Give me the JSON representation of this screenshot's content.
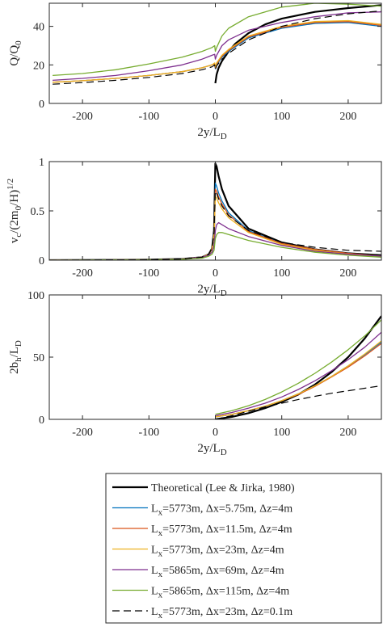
{
  "colors": {
    "theoretical": "#000000",
    "dx575": "#0072BD",
    "dx115": "#D95319",
    "dx23": "#EDB120",
    "dx69": "#7E2F8E",
    "dx115b": "#77AC30",
    "dz01": "#000000"
  },
  "legend": {
    "placement": "bottom",
    "entries": [
      {
        "key": "theoretical",
        "label": "Theoretical (Lee & Jirka, 1980)",
        "style": "thick"
      },
      {
        "key": "dx575",
        "label_main": "L",
        "label_sub": "x",
        "label_rest": "=5773m, Δx=5.75m, Δz=4m",
        "style": "solid"
      },
      {
        "key": "dx115",
        "label_main": "L",
        "label_sub": "x",
        "label_rest": "=5773m, Δx=11.5m, Δz=4m",
        "style": "solid"
      },
      {
        "key": "dx23",
        "label_main": "L",
        "label_sub": "x",
        "label_rest": "=5773m, Δx=23m, Δz=4m",
        "style": "solid"
      },
      {
        "key": "dx69",
        "label_main": "L",
        "label_sub": "x",
        "label_rest": "=5865m, Δx=69m, Δz=4m",
        "style": "solid"
      },
      {
        "key": "dx115b",
        "label_main": "L",
        "label_sub": "x",
        "label_rest": "=5865m, Δx=115m, Δz=4m",
        "style": "solid"
      },
      {
        "key": "dz01",
        "label_main": "L",
        "label_sub": "x",
        "label_rest": "=5773m, Δx=23m, Δz=0.1m",
        "style": "dashed"
      }
    ]
  },
  "chart_data": [
    {
      "type": "line",
      "xlabel_main": "2y/L",
      "xlabel_sub": "D",
      "ylabel_main": "Q/Q",
      "ylabel_sub": "0",
      "xlim": [
        -250,
        250
      ],
      "ylim": [
        0,
        52
      ],
      "xticks": [
        -200,
        -100,
        0,
        100,
        200
      ],
      "yticks": [
        0,
        20,
        40
      ],
      "xtick_labels": [
        "-200",
        "-100",
        "0",
        "100",
        "200"
      ],
      "ytick_labels": [
        "0",
        "20",
        "40"
      ],
      "grid": false,
      "series": [
        {
          "key": "theoretical",
          "x": [
            0,
            2,
            5,
            10,
            20,
            30,
            50,
            75,
            100,
            150,
            200,
            250
          ],
          "y": [
            10.5,
            15,
            18.5,
            22,
            27,
            31,
            36.5,
            41,
            44,
            47.5,
            49.5,
            51
          ]
        },
        {
          "key": "dx575",
          "x": [
            -245,
            -200,
            -150,
            -100,
            -50,
            -20,
            -5,
            -1,
            0,
            2,
            10,
            20,
            50,
            100,
            150,
            200,
            250
          ],
          "y": [
            11,
            11.8,
            13,
            14.5,
            16.5,
            18.5,
            20,
            20.5,
            18,
            20,
            24,
            27,
            34,
            39,
            41.5,
            42,
            40
          ]
        },
        {
          "key": "dx115",
          "x": [
            -245,
            -200,
            -150,
            -100,
            -50,
            -20,
            -5,
            -1,
            0,
            2,
            10,
            20,
            50,
            100,
            150,
            200,
            250
          ],
          "y": [
            11,
            11.8,
            13,
            14.5,
            16.5,
            18.5,
            20,
            20.5,
            18.5,
            20.5,
            24.5,
            27.5,
            34.5,
            39.5,
            42,
            42.5,
            40.5
          ]
        },
        {
          "key": "dx23",
          "x": [
            -245,
            -200,
            -150,
            -100,
            -50,
            -20,
            -5,
            -1,
            0,
            2,
            10,
            20,
            50,
            100,
            150,
            200,
            250
          ],
          "y": [
            11,
            11.8,
            13,
            14.5,
            16.5,
            18.5,
            20,
            21,
            19,
            21,
            25,
            28,
            35,
            40,
            42.5,
            43,
            41
          ]
        },
        {
          "key": "dx69",
          "x": [
            -245,
            -200,
            -150,
            -100,
            -50,
            -20,
            -5,
            -1,
            0,
            2,
            10,
            20,
            50,
            100,
            150,
            200,
            250
          ],
          "y": [
            12,
            13,
            14.5,
            17,
            20,
            23,
            25,
            25.5,
            23,
            25,
            30,
            33,
            38,
            42,
            45,
            47,
            47.5
          ]
        },
        {
          "key": "dx115b",
          "x": [
            -245,
            -200,
            -150,
            -100,
            -50,
            -20,
            -5,
            -1,
            0,
            2,
            10,
            20,
            50,
            100,
            150,
            200,
            250
          ],
          "y": [
            14.5,
            15.5,
            17.5,
            20.5,
            24,
            27,
            29,
            30,
            27,
            29,
            35,
            39,
            45,
            50,
            52,
            51.5,
            50.5
          ]
        },
        {
          "key": "dz01",
          "x": [
            -245,
            -200,
            -150,
            -100,
            -50,
            -20,
            -5,
            -1,
            0,
            2,
            10,
            20,
            50,
            100,
            150,
            200,
            250
          ],
          "y": [
            10,
            10.8,
            12,
            13.5,
            15.5,
            17.5,
            19,
            20,
            17.5,
            19.5,
            23,
            26,
            33,
            40,
            44,
            46.5,
            48
          ]
        }
      ]
    },
    {
      "type": "line",
      "xlabel_main": "2y/L",
      "xlabel_sub": "D",
      "ylabel_parts": [
        "v",
        "c",
        "/(2m",
        "0",
        "/H)",
        "1/2"
      ],
      "xlim": [
        -250,
        250
      ],
      "ylim": [
        0,
        1
      ],
      "xticks": [
        -200,
        -100,
        0,
        100,
        200
      ],
      "yticks": [
        0,
        0.5,
        1
      ],
      "xtick_labels": [
        "-200",
        "-100",
        "0",
        "100",
        "200"
      ],
      "ytick_labels": [
        "0",
        "0.5",
        "1"
      ],
      "grid": false,
      "series": [
        {
          "key": "theoretical",
          "x": [
            -250,
            -100,
            -50,
            -20,
            -10,
            -5,
            -2,
            0,
            2,
            5,
            10,
            20,
            50,
            100,
            150,
            200,
            250
          ],
          "y": [
            0,
            0.005,
            0.012,
            0.03,
            0.06,
            0.12,
            0.3,
            0.98,
            0.95,
            0.85,
            0.72,
            0.55,
            0.32,
            0.18,
            0.11,
            0.07,
            0.05
          ]
        },
        {
          "key": "dx575",
          "x": [
            -250,
            -100,
            -50,
            -20,
            -10,
            -5,
            -2,
            0,
            2,
            5,
            10,
            20,
            50,
            100,
            150,
            200,
            250
          ],
          "y": [
            0,
            0.005,
            0.012,
            0.03,
            0.06,
            0.12,
            0.3,
            0.78,
            0.75,
            0.68,
            0.6,
            0.48,
            0.3,
            0.17,
            0.11,
            0.07,
            0.04
          ]
        },
        {
          "key": "dx115",
          "x": [
            -250,
            -100,
            -50,
            -20,
            -10,
            -5,
            -2,
            0,
            2,
            5,
            10,
            20,
            50,
            100,
            150,
            200,
            250
          ],
          "y": [
            0,
            0.005,
            0.012,
            0.03,
            0.06,
            0.12,
            0.28,
            0.72,
            0.7,
            0.64,
            0.57,
            0.46,
            0.29,
            0.17,
            0.11,
            0.07,
            0.04
          ]
        },
        {
          "key": "dx23",
          "x": [
            -250,
            -100,
            -50,
            -20,
            -10,
            -5,
            -2,
            0,
            2,
            5,
            10,
            20,
            50,
            100,
            150,
            200,
            250
          ],
          "y": [
            0,
            0.005,
            0.012,
            0.03,
            0.06,
            0.11,
            0.25,
            0.65,
            0.63,
            0.58,
            0.52,
            0.43,
            0.28,
            0.16,
            0.1,
            0.06,
            0.04
          ]
        },
        {
          "key": "dx69",
          "x": [
            -250,
            -100,
            -50,
            -20,
            -10,
            -5,
            -2,
            0,
            2,
            5,
            10,
            20,
            50,
            100,
            150,
            200,
            250
          ],
          "y": [
            0,
            0.005,
            0.012,
            0.03,
            0.05,
            0.08,
            0.15,
            0.3,
            0.36,
            0.38,
            0.36,
            0.32,
            0.24,
            0.15,
            0.09,
            0.06,
            0.04
          ]
        },
        {
          "key": "dx115b",
          "x": [
            -250,
            -100,
            -50,
            -20,
            -10,
            -5,
            -2,
            0,
            2,
            5,
            10,
            20,
            50,
            100,
            150,
            200,
            250
          ],
          "y": [
            0,
            0.005,
            0.01,
            0.02,
            0.04,
            0.06,
            0.1,
            0.22,
            0.26,
            0.28,
            0.28,
            0.26,
            0.2,
            0.13,
            0.08,
            0.05,
            0.03
          ]
        },
        {
          "key": "dz01",
          "x": [
            -250,
            -100,
            -50,
            -20,
            -10,
            -5,
            -2,
            0,
            2,
            5,
            10,
            20,
            50,
            100,
            150,
            200,
            250
          ],
          "y": [
            0,
            0.005,
            0.012,
            0.03,
            0.06,
            0.12,
            0.28,
            0.7,
            0.68,
            0.62,
            0.55,
            0.45,
            0.3,
            0.18,
            0.13,
            0.1,
            0.09
          ]
        }
      ]
    },
    {
      "type": "line",
      "xlabel_main": "2y/L",
      "xlabel_sub": "D",
      "ylabel_parts": [
        "2b",
        "h",
        "/L",
        "D"
      ],
      "xlim": [
        -250,
        250
      ],
      "ylim": [
        0,
        100
      ],
      "xticks": [
        -200,
        -100,
        0,
        100,
        200
      ],
      "yticks": [
        0,
        50,
        100
      ],
      "xtick_labels": [
        "-200",
        "-100",
        "0",
        "100",
        "200"
      ],
      "ytick_labels": [
        "0",
        "50",
        "100"
      ],
      "grid": false,
      "series": [
        {
          "key": "theoretical",
          "x": [
            0,
            25,
            50,
            75,
            100,
            125,
            150,
            175,
            200,
            225,
            250
          ],
          "y": [
            0,
            2,
            5,
            9,
            14,
            20,
            28,
            38,
            50,
            65,
            83
          ]
        },
        {
          "key": "dx575",
          "x": [
            0,
            25,
            50,
            75,
            100,
            125,
            150,
            175,
            200,
            225,
            250
          ],
          "y": [
            2,
            4,
            7,
            10.5,
            15,
            20.5,
            27,
            34.5,
            43,
            52,
            62
          ]
        },
        {
          "key": "dx115",
          "x": [
            0,
            25,
            50,
            75,
            100,
            125,
            150,
            175,
            200,
            225,
            250
          ],
          "y": [
            2,
            4,
            7,
            10.5,
            15,
            20,
            26.5,
            34,
            42,
            51,
            61
          ]
        },
        {
          "key": "dx23",
          "x": [
            0,
            25,
            50,
            75,
            100,
            125,
            150,
            175,
            200,
            225,
            250
          ],
          "y": [
            2,
            4,
            7,
            10.5,
            15,
            20.5,
            27,
            34.5,
            43,
            52.5,
            63
          ]
        },
        {
          "key": "dx69",
          "x": [
            0,
            25,
            50,
            75,
            100,
            125,
            150,
            175,
            200,
            225,
            250
          ],
          "y": [
            3,
            5.5,
            9,
            13,
            18,
            24,
            31,
            39,
            48,
            58,
            70
          ]
        },
        {
          "key": "dx115b",
          "x": [
            0,
            25,
            50,
            75,
            100,
            125,
            150,
            175,
            200,
            225,
            250
          ],
          "y": [
            4,
            7,
            11,
            16,
            22,
            29,
            37,
            46,
            56,
            67,
            80
          ]
        },
        {
          "key": "dz01",
          "x": [
            0,
            25,
            50,
            75,
            100,
            125,
            150,
            175,
            200,
            225,
            250
          ],
          "y": [
            0,
            3,
            6.5,
            10,
            13,
            16,
            18.5,
            21,
            23,
            25,
            27
          ]
        }
      ]
    }
  ]
}
